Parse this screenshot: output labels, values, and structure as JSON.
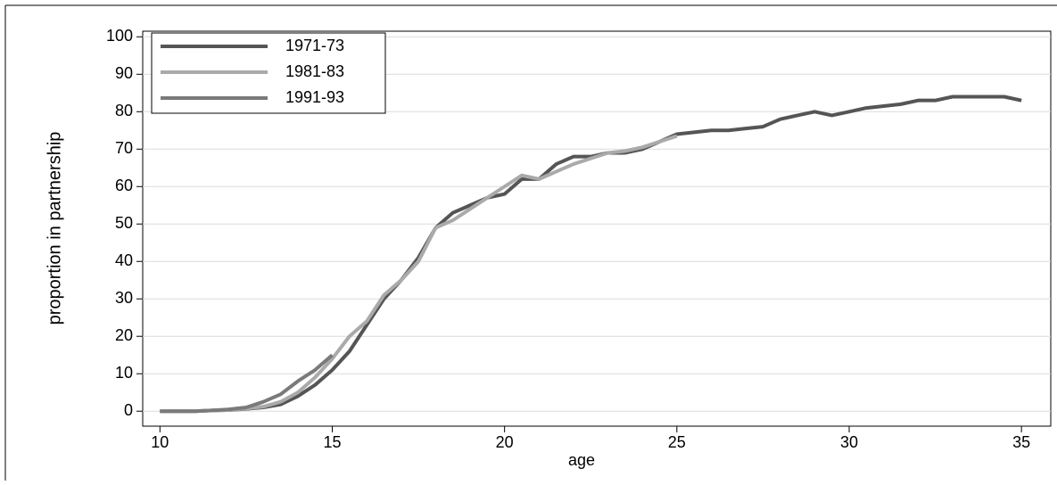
{
  "chart_data": {
    "type": "line",
    "xlabel": "age",
    "ylabel": "proportion in partnership",
    "x": [
      10,
      10.5,
      11,
      11.5,
      12,
      12.5,
      13,
      13.5,
      14,
      14.5,
      15,
      15.5,
      16,
      16.5,
      17,
      17.5,
      18,
      18.5,
      19,
      19.5,
      20,
      20.5,
      21,
      21.5,
      22,
      22.5,
      23,
      23.5,
      24,
      24.5,
      25,
      25.5,
      26,
      26.5,
      27,
      27.5,
      28,
      28.5,
      29,
      29.5,
      30,
      30.5,
      31,
      31.5,
      32,
      32.5,
      33,
      33.5,
      34,
      34.5,
      35
    ],
    "series": [
      {
        "name": "1971-73",
        "color": "#555555",
        "values": [
          0,
          0,
          0,
          0.2,
          0.3,
          0.6,
          1,
          1.8,
          4,
          7,
          11,
          16,
          23,
          30,
          35,
          41,
          49,
          53,
          55,
          57,
          58,
          62,
          62,
          66,
          68,
          68,
          69,
          69,
          70,
          72,
          74,
          74.5,
          75,
          75,
          75.5,
          76,
          78,
          79,
          80,
          79,
          80,
          81,
          81.5,
          82,
          83,
          83,
          84,
          84,
          84,
          84,
          83
        ]
      },
      {
        "name": "1981-83",
        "color": "#aaaaaa",
        "values": [
          0,
          0,
          0,
          0.2,
          0.3,
          0.7,
          1.2,
          2.5,
          5,
          9,
          14,
          20,
          24,
          31,
          35,
          40,
          49,
          51,
          54,
          57,
          60,
          63,
          62,
          64,
          66,
          67.5,
          69,
          69.5,
          70.5,
          72,
          73.5,
          null,
          null,
          null,
          null,
          null,
          null,
          null,
          null,
          null,
          null,
          null,
          null,
          null,
          null,
          null,
          null,
          null,
          null,
          null,
          null
        ]
      },
      {
        "name": "1991-93",
        "color": "#7a7a7a",
        "values": [
          0,
          0,
          0,
          0.2,
          0.5,
          1,
          2.5,
          4.5,
          8,
          11,
          15,
          null,
          null,
          null,
          null,
          null,
          null,
          null,
          null,
          null,
          null,
          null,
          null,
          null,
          null,
          null,
          null,
          null,
          null,
          null,
          null,
          null,
          null,
          null,
          null,
          null,
          null,
          null,
          null,
          null,
          null,
          null,
          null,
          null,
          null,
          null,
          null,
          null,
          null,
          null,
          null
        ]
      }
    ],
    "xlim": [
      9.5,
      35.85
    ],
    "ylim": [
      -4,
      101.5
    ],
    "xticks": [
      10,
      15,
      20,
      25,
      30,
      35
    ],
    "yticks": [
      0,
      10,
      20,
      30,
      40,
      50,
      60,
      70,
      80,
      90,
      100
    ],
    "grid": true,
    "legend": "top-left"
  }
}
